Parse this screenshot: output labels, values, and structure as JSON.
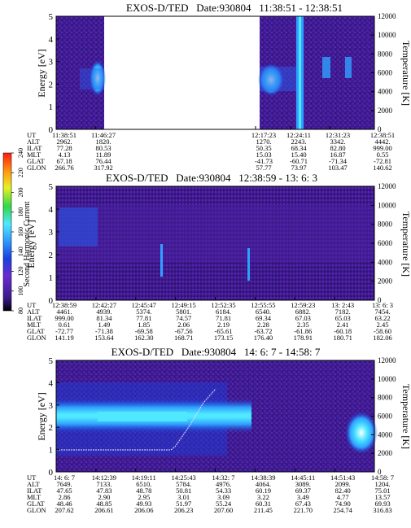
{
  "colors": {
    "background": "#3a1a8c",
    "purple": "#4b1fa0",
    "violet": "#6a2ccf",
    "blue": "#1a40e0",
    "lightblue": "#2fa0ff",
    "cyan": "#4fe8ff",
    "white": "#ffffff"
  },
  "colorbar": {
    "label": "Second Harmonic Current",
    "ticks": [
      "80",
      "100",
      "120",
      "140",
      "160",
      "180",
      "200",
      "220",
      "240"
    ]
  },
  "row_labels": [
    "UT",
    "ALT",
    "ILAT",
    "MLT",
    "GLAT",
    "GLON"
  ],
  "chart_data": [
    {
      "type": "heatmap",
      "title": "EXOS-D/TED   Date:930804   11:38:51 - 12:38:51",
      "ylabel": "Energy [eV]",
      "ylabel_right": "Temperature [K]",
      "ylim": [
        0,
        5
      ],
      "yticks": [
        "0",
        "1",
        "2",
        "3",
        "4",
        "5"
      ],
      "ylim_right": [
        0,
        12000
      ],
      "yticks_right": [
        "0",
        "2000",
        "4000",
        "6000",
        "8000",
        "10000",
        "12000"
      ],
      "data_gap": [
        "11:46:27",
        "12:17:23"
      ],
      "columns": [
        {
          "UT": "11:38:51",
          "ALT": "2962.",
          "ILAT": "77.28",
          "MLT": "4.13",
          "GLAT": "67.18",
          "GLON": "266.76"
        },
        {
          "UT": "11:46:27",
          "ALT": "1820.",
          "ILAT": "80.53",
          "MLT": "11.89",
          "GLAT": "76.44",
          "GLON": "317.92"
        },
        {
          "UT": "12:17:23",
          "ALT": "1270.",
          "ILAT": "50.35",
          "MLT": "15.03",
          "GLAT": "-41.73",
          "GLON": "57.77"
        },
        {
          "UT": "12:24:11",
          "ALT": "2243.",
          "ILAT": "68.34",
          "MLT": "15.40",
          "GLAT": "-60.71",
          "GLON": "73.97"
        },
        {
          "UT": "12:31:23",
          "ALT": "3342.",
          "ILAT": "82.80",
          "MLT": "16.87",
          "GLAT": "-71.34",
          "GLON": "103.47"
        },
        {
          "UT": "12:38:51",
          "ALT": "4442.",
          "ILAT": "999.00",
          "MLT": "0.55",
          "GLAT": "-72.81",
          "GLON": "140.62"
        }
      ]
    },
    {
      "type": "heatmap",
      "title": "EXOS-D/TED   Date:930804   12:38:59 - 13: 6: 3",
      "ylabel": "Energy [eV]",
      "ylabel_right": "Temperature [K]",
      "ylim": [
        0,
        5
      ],
      "yticks": [
        "0",
        "1",
        "2",
        "3",
        "4",
        "5"
      ],
      "ylim_right": [
        0,
        12000
      ],
      "yticks_right": [
        "0",
        "2000",
        "4000",
        "6000",
        "8000",
        "10000",
        "12000"
      ],
      "columns": [
        {
          "UT": "12:38:59",
          "ALT": "4461.",
          "ILAT": "999.00",
          "MLT": "0.61",
          "GLAT": "-72.77",
          "GLON": "141.19"
        },
        {
          "UT": "12:42:27",
          "ALT": "4939.",
          "ILAT": "81.34",
          "MLT": "1.49",
          "GLAT": "-71.38",
          "GLON": "153.64"
        },
        {
          "UT": "12:45:47",
          "ALT": "5374.",
          "ILAT": "77.81",
          "MLT": "1.85",
          "GLAT": "-69.58",
          "GLON": "162.30"
        },
        {
          "UT": "12:49:15",
          "ALT": "5801.",
          "ILAT": "74.57",
          "MLT": "2.06",
          "GLAT": "-67.56",
          "GLON": "168.71"
        },
        {
          "UT": "12:52:35",
          "ALT": "6184.",
          "ILAT": "71.81",
          "MLT": "2.19",
          "GLAT": "-65.61",
          "GLON": "173.15"
        },
        {
          "UT": "12:55:55",
          "ALT": "6540.",
          "ILAT": "69.34",
          "MLT": "2.28",
          "GLAT": "-63.72",
          "GLON": "176.40"
        },
        {
          "UT": "12:59:23",
          "ALT": "6882.",
          "ILAT": "67.03",
          "MLT": "2.35",
          "GLAT": "-61.86",
          "GLON": "178.91"
        },
        {
          "UT": "13: 2:43",
          "ALT": "7182.",
          "ILAT": "65.03",
          "MLT": "2.41",
          "GLAT": "-60.18",
          "GLON": "180.71"
        },
        {
          "UT": "13: 6: 3",
          "ALT": "7454.",
          "ILAT": "63.22",
          "MLT": "2.45",
          "GLAT": "-58.60",
          "GLON": "182.06"
        }
      ]
    },
    {
      "type": "heatmap",
      "title": "EXOS-D/TED   Date:930804   14: 6: 7 - 14:58: 7",
      "ylabel": "Energy [eV]",
      "ylabel_right": "Temperature [K]",
      "ylim": [
        0,
        5
      ],
      "yticks": [
        "0",
        "1",
        "2",
        "3",
        "4",
        "5"
      ],
      "ylim_right": [
        0,
        12000
      ],
      "yticks_right": [
        "0",
        "2000",
        "4000",
        "6000",
        "8000",
        "10000",
        "12000"
      ],
      "columns": [
        {
          "UT": "14: 6: 7",
          "ALT": "7649.",
          "ILAT": "47.65",
          "MLT": "2.86",
          "GLAT": "48.46",
          "GLON": "207.62"
        },
        {
          "UT": "14:12:39",
          "ALT": "7133.",
          "ILAT": "47.83",
          "MLT": "2.90",
          "GLAT": "48.85",
          "GLON": "206.61"
        },
        {
          "UT": "14:19:11",
          "ALT": "6510.",
          "ILAT": "48.78",
          "MLT": "2.95",
          "GLAT": "49.93",
          "GLON": "206.06"
        },
        {
          "UT": "14:25:43",
          "ALT": "5784.",
          "ILAT": "50.81",
          "MLT": "3.01",
          "GLAT": "51.97",
          "GLON": "206.23"
        },
        {
          "UT": "14:32: 7",
          "ALT": "4976.",
          "ILAT": "54.33",
          "MLT": "3.09",
          "GLAT": "55.24",
          "GLON": "207.60"
        },
        {
          "UT": "14:38:39",
          "ALT": "4064.",
          "ILAT": "60.19",
          "MLT": "3.22",
          "GLAT": "60.31",
          "GLON": "211.45"
        },
        {
          "UT": "14:45:11",
          "ALT": "3089.",
          "ILAT": "69.37",
          "MLT": "3.49",
          "GLAT": "67.43",
          "GLON": "221.70"
        },
        {
          "UT": "14:51:43",
          "ALT": "2099.",
          "ILAT": "82.40",
          "MLT": "4.77",
          "GLAT": "74.90",
          "GLON": "254.74"
        },
        {
          "UT": "14:58: 7",
          "ALT": "1204.",
          "ILAT": "75.01",
          "MLT": "13.57",
          "GLAT": "69.93",
          "GLON": "316.83"
        }
      ]
    }
  ]
}
